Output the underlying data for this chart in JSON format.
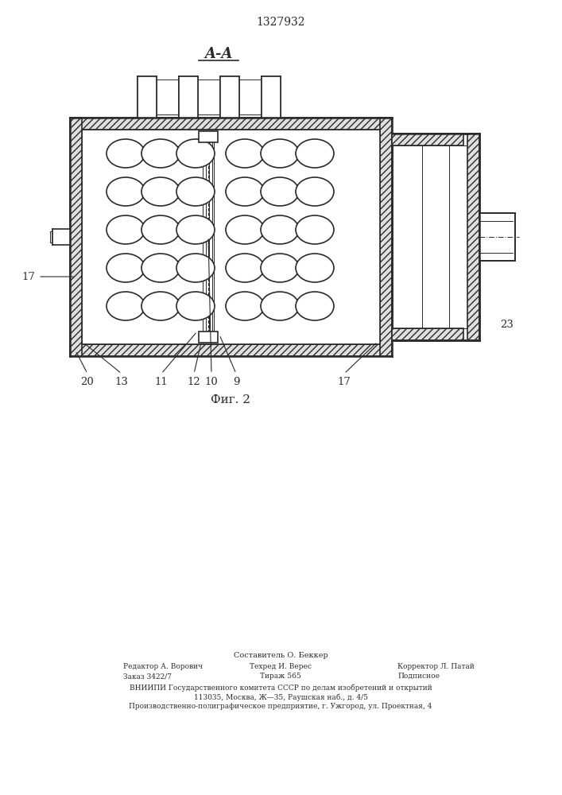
{
  "title_patent": "1327932",
  "section_label": "A-A",
  "figure_label": "Фиг. 2",
  "bg_color": "#ffffff",
  "line_color": "#2a2a2a",
  "footer_line1": "Составитель О. Беккер",
  "footer_line2_col1": "Редактор А. Ворович",
  "footer_line2_col2": "Техред И. Верес",
  "footer_line2_col3": "Корректор Л. Патай",
  "footer_line3_col1": "Заказ 3422/7",
  "footer_line3_col2": "Тираж 565",
  "footer_line3_col3": "Подписное",
  "footer_line4": "ВНИИПИ Государственного комитета СССР по делам изобретений и открытий",
  "footer_line5": "113035, Москва, Ж—35, Раушская наб., д. 4/5",
  "footer_line6": "Производственно-полиграфическое предприятие, г. Ужгород, ул. Проектная, 4"
}
